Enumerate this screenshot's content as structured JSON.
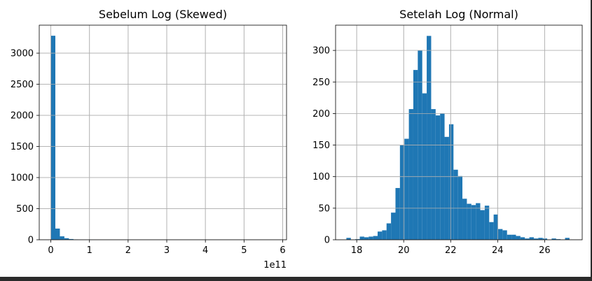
{
  "chart_data": [
    {
      "type": "bar",
      "title": "Sebelum Log (Skewed)",
      "x_offset_label": "1e11",
      "xlim": [
        -0.3,
        6.1
      ],
      "ylim": [
        0,
        3450
      ],
      "xticks": [
        0,
        1,
        2,
        3,
        4,
        5,
        6
      ],
      "yticks": [
        0,
        500,
        1000,
        1500,
        2000,
        2500,
        3000
      ],
      "grid": true,
      "color": "#1f77b4",
      "bins": {
        "start": 0,
        "width": 0.117,
        "counts": [
          3280,
          180,
          55,
          25,
          12,
          6,
          4,
          3,
          2,
          2,
          1,
          1,
          1,
          1,
          1,
          1,
          1,
          0,
          0,
          1,
          0,
          0,
          0,
          0,
          0,
          0,
          0,
          0,
          0,
          0,
          0,
          0,
          0,
          0,
          0,
          0,
          0,
          0,
          0,
          0,
          0,
          0,
          0,
          0,
          0,
          0,
          0,
          0,
          0,
          1
        ]
      }
    },
    {
      "type": "bar",
      "title": "Setelah Log (Normal)",
      "xlim": [
        17.1,
        27.6
      ],
      "ylim": [
        0,
        340
      ],
      "xticks": [
        18,
        20,
        22,
        24,
        26
      ],
      "yticks": [
        0,
        50,
        100,
        150,
        200,
        250,
        300
      ],
      "grid": true,
      "color": "#1f77b4",
      "bins": {
        "start": 17.56,
        "width": 0.19,
        "counts": [
          3,
          0,
          1,
          5,
          4,
          5,
          6,
          13,
          15,
          26,
          43,
          82,
          150,
          160,
          207,
          269,
          300,
          232,
          323,
          207,
          197,
          200,
          163,
          183,
          111,
          101,
          65,
          57,
          55,
          58,
          47,
          54,
          28,
          40,
          17,
          15,
          8,
          8,
          6,
          4,
          2,
          4,
          2,
          3,
          2,
          0,
          2,
          1,
          0,
          3
        ]
      }
    }
  ]
}
